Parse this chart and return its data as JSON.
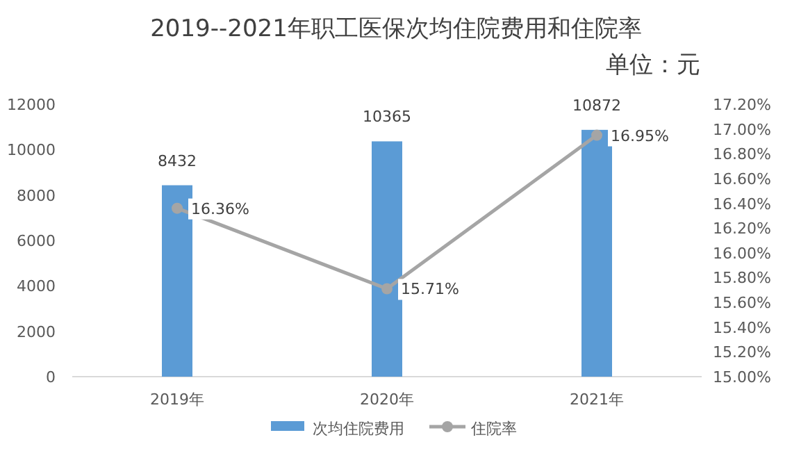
{
  "chart_data": {
    "type": "bar",
    "title": "2019--2021年职工医保次均住院费用和住院率",
    "subtitle": "单位：元",
    "categories": [
      "2019年",
      "2020年",
      "2021年"
    ],
    "series": [
      {
        "name": "次均住院费用",
        "color": "#5b9bd5",
        "values": [
          8432,
          10365,
          10872
        ],
        "value_labels": [
          "8432",
          "10365",
          "10872"
        ]
      },
      {
        "name": "住院率",
        "type": "line",
        "axis": "y2",
        "color": "#a5a5a5",
        "values": [
          16.36,
          15.71,
          16.95
        ],
        "value_labels": [
          "16.36%",
          "15.71%",
          "16.95%"
        ],
        "marker": "circle"
      }
    ],
    "ylim": [
      0,
      12000
    ],
    "yticks": [
      0,
      2000,
      4000,
      6000,
      8000,
      10000,
      12000
    ],
    "y2lim": [
      15,
      17.2
    ],
    "y2ticks": [
      {
        "value": 15,
        "label": "15.00%"
      },
      {
        "value": 15.2,
        "label": "15.20%"
      },
      {
        "value": 15.4,
        "label": "15.40%"
      },
      {
        "value": 15.6,
        "label": "15.60%"
      },
      {
        "value": 15.8,
        "label": "15.80%"
      },
      {
        "value": 16,
        "label": "16.00%"
      },
      {
        "value": 16.2,
        "label": "16.20%"
      },
      {
        "value": 16.4,
        "label": "16.40%"
      },
      {
        "value": 16.6,
        "label": "16.60%"
      },
      {
        "value": 16.8,
        "label": "16.80%"
      },
      {
        "value": 17,
        "label": "17.00%"
      },
      {
        "value": 17.2,
        "label": "17.20%"
      }
    ],
    "legend": "bottom"
  }
}
